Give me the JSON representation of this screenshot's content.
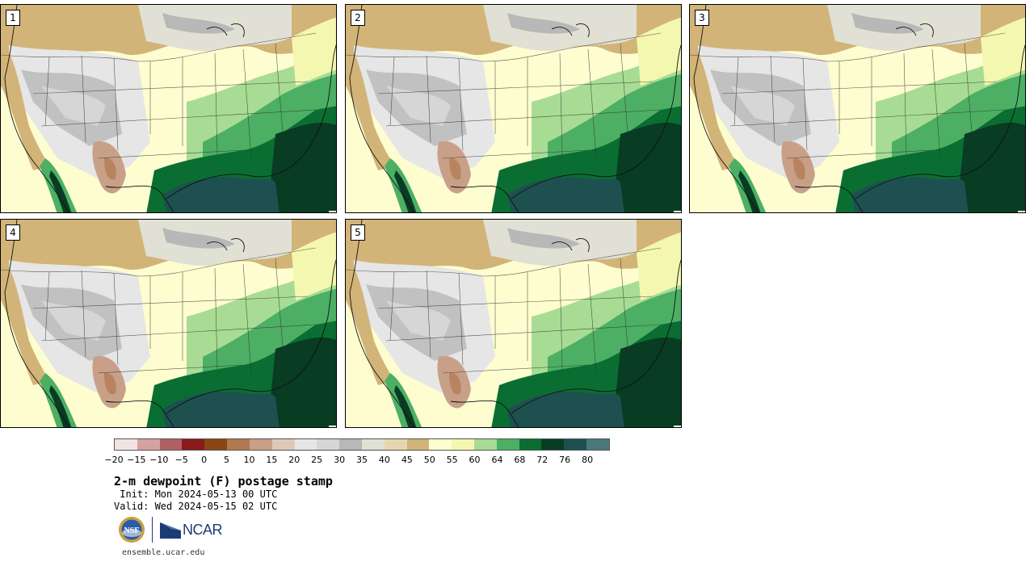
{
  "title": "2-m dewpoint (F) postage stamp",
  "init_text": " Init: Mon 2024-05-13 00 UTC",
  "valid_text": "Valid: Wed 2024-05-15 02 UTC",
  "url": "ensemble.ucar.edu",
  "panels": [
    {
      "label": "1"
    },
    {
      "label": "2"
    },
    {
      "label": "3"
    },
    {
      "label": "4"
    },
    {
      "label": "5"
    }
  ],
  "colorbar": {
    "colors": [
      "#f3e4e4",
      "#d4a1a1",
      "#b06060",
      "#8b1a1a",
      "#8b4513",
      "#b07850",
      "#c8a088",
      "#e0c8b8",
      "#e6e6e6",
      "#d6d6d6",
      "#b8b8b8",
      "#e0e0d4",
      "#e6d6b0",
      "#d2b478",
      "#fdfdd0",
      "#f4f7b0",
      "#a8dc94",
      "#4caf64",
      "#0a6e32",
      "#083c23",
      "#1e5050",
      "#4a7878"
    ],
    "ticks": [
      "−20",
      "−15",
      "−10",
      "−5",
      "0",
      "5",
      "10",
      "15",
      "20",
      "25",
      "30",
      "35",
      "40",
      "45",
      "50",
      "55",
      "60",
      "64",
      "68",
      "72",
      "76",
      "80"
    ]
  },
  "logos": {
    "nsf": "NSF",
    "ncar": "NCAR"
  },
  "icons": [
    "nsf-logo-icon",
    "ncar-logo-icon"
  ]
}
